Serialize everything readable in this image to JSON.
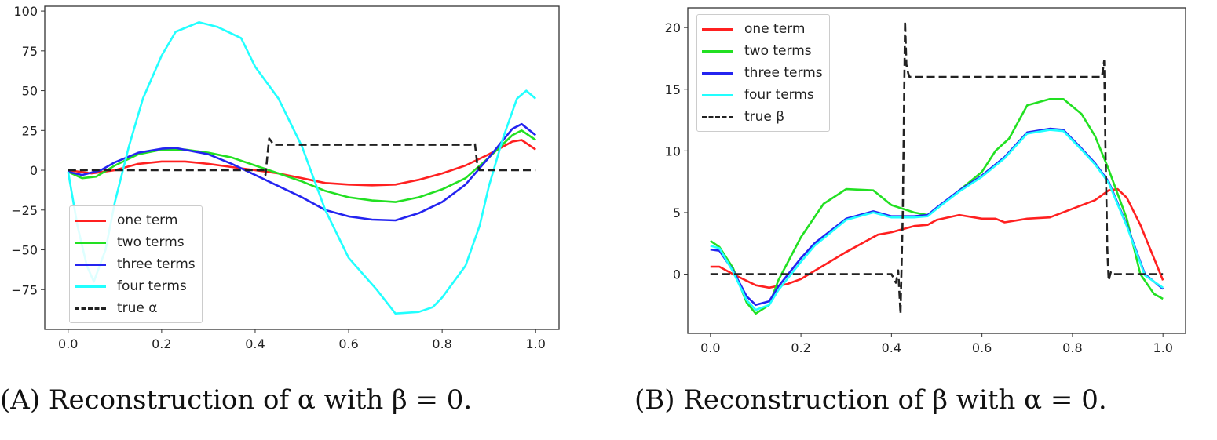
{
  "chart_data": [
    {
      "type": "line",
      "panel": "A",
      "caption_label": "(A)",
      "caption_text": "Reconstruction of α with β = 0.",
      "xlim": [
        -0.05,
        1.05
      ],
      "ylim": [
        -100,
        103
      ],
      "xticks": [
        0.0,
        0.2,
        0.4,
        0.6,
        0.8,
        1.0
      ],
      "xtick_labels": [
        "0.0",
        "0.2",
        "0.4",
        "0.6",
        "0.8",
        "1.0"
      ],
      "yticks": [
        100,
        75,
        50,
        25,
        0,
        -25,
        -50,
        -75
      ],
      "ytick_labels": [
        "100",
        "75",
        "50",
        "25",
        "0",
        "−25",
        "−50",
        "−75"
      ],
      "grid": false,
      "legend_placement": "lower-left",
      "series": [
        {
          "name": "one term",
          "color": "#ff2020",
          "dash": false,
          "x": [
            0,
            0.05,
            0.1,
            0.15,
            0.2,
            0.25,
            0.3,
            0.35,
            0.4,
            0.45,
            0.5,
            0.55,
            0.6,
            0.65,
            0.7,
            0.75,
            0.8,
            0.85,
            0.9,
            0.95,
            0.97,
            1.0
          ],
          "y": [
            0,
            -2,
            0,
            4,
            5.5,
            5.5,
            4,
            2,
            0,
            -2,
            -5,
            -8,
            -9,
            -9.5,
            -9,
            -6,
            -2,
            3,
            10,
            18,
            19,
            13
          ]
        },
        {
          "name": "two terms",
          "color": "#22e022",
          "dash": false,
          "x": [
            0,
            0.03,
            0.06,
            0.1,
            0.15,
            0.2,
            0.25,
            0.3,
            0.35,
            0.4,
            0.45,
            0.5,
            0.55,
            0.6,
            0.65,
            0.7,
            0.75,
            0.8,
            0.85,
            0.9,
            0.95,
            0.97,
            1.0
          ],
          "y": [
            -1,
            -5,
            -4,
            3,
            10,
            13,
            13,
            11,
            8,
            3,
            -2,
            -7,
            -13,
            -17,
            -19,
            -20,
            -17,
            -12,
            -5,
            8,
            22,
            25,
            19
          ]
        },
        {
          "name": "three terms",
          "color": "#2424f0",
          "dash": false,
          "x": [
            0,
            0.03,
            0.07,
            0.1,
            0.15,
            0.2,
            0.23,
            0.3,
            0.35,
            0.4,
            0.45,
            0.5,
            0.55,
            0.6,
            0.65,
            0.7,
            0.75,
            0.8,
            0.85,
            0.9,
            0.95,
            0.97,
            1.0
          ],
          "y": [
            -1,
            -3,
            0,
            5,
            11,
            13.5,
            14,
            10,
            4,
            -3,
            -10,
            -17,
            -25,
            -29,
            -31,
            -31.5,
            -27,
            -20,
            -9,
            8,
            26,
            29,
            22
          ]
        },
        {
          "name": "four terms",
          "color": "#22ffff",
          "dash": false,
          "x": [
            0,
            0.02,
            0.04,
            0.055,
            0.08,
            0.1,
            0.13,
            0.16,
            0.2,
            0.23,
            0.28,
            0.32,
            0.37,
            0.4,
            0.45,
            0.5,
            0.55,
            0.6,
            0.63,
            0.66,
            0.7,
            0.75,
            0.78,
            0.8,
            0.85,
            0.88,
            0.9,
            0.93,
            0.96,
            0.98,
            1.0
          ],
          "y": [
            -1,
            -35,
            -60,
            -70,
            -50,
            -20,
            15,
            45,
            72,
            87,
            93,
            90,
            83,
            65,
            45,
            15,
            -25,
            -55,
            -65,
            -75,
            -90,
            -89,
            -86,
            -80,
            -60,
            -35,
            -10,
            20,
            45,
            50,
            45
          ]
        },
        {
          "name": "true α",
          "color": "#222222",
          "dash": true,
          "x": [
            0,
            0.42,
            0.422,
            0.43,
            0.44,
            0.86,
            0.87,
            0.875,
            0.88,
            1.0
          ],
          "y": [
            0,
            0,
            -3,
            20,
            16,
            16,
            17,
            4,
            0,
            0
          ]
        }
      ]
    },
    {
      "type": "line",
      "panel": "B",
      "caption_label": "(B)",
      "caption_text": "Reconstruction of β with α = 0.",
      "xlim": [
        -0.05,
        1.05
      ],
      "ylim": [
        -4.8,
        21.6
      ],
      "xticks": [
        0.0,
        0.2,
        0.4,
        0.6,
        0.8,
        1.0
      ],
      "xtick_labels": [
        "0.0",
        "0.2",
        "0.4",
        "0.6",
        "0.8",
        "1.0"
      ],
      "yticks": [
        20,
        15,
        10,
        5,
        0
      ],
      "ytick_labels": [
        "20",
        "15",
        "10",
        "5",
        "0"
      ],
      "grid": false,
      "legend_placement": "upper-left",
      "series": [
        {
          "name": "one term",
          "color": "#ff2020",
          "dash": false,
          "x": [
            0,
            0.02,
            0.05,
            0.1,
            0.13,
            0.17,
            0.2,
            0.25,
            0.3,
            0.35,
            0.37,
            0.4,
            0.45,
            0.48,
            0.5,
            0.55,
            0.6,
            0.63,
            0.65,
            0.7,
            0.75,
            0.8,
            0.85,
            0.88,
            0.9,
            0.92,
            0.95,
            1.0
          ],
          "y": [
            0.6,
            0.6,
            0,
            -0.9,
            -1.1,
            -0.8,
            -0.4,
            0.7,
            1.8,
            2.8,
            3.2,
            3.4,
            3.9,
            4.0,
            4.4,
            4.8,
            4.5,
            4.5,
            4.2,
            4.5,
            4.6,
            5.3,
            6.0,
            6.8,
            6.9,
            6.2,
            4,
            -0.5
          ]
        },
        {
          "name": "two terms",
          "color": "#22e022",
          "dash": false,
          "x": [
            0,
            0.02,
            0.05,
            0.08,
            0.1,
            0.13,
            0.15,
            0.2,
            0.25,
            0.3,
            0.36,
            0.4,
            0.45,
            0.48,
            0.5,
            0.55,
            0.6,
            0.63,
            0.66,
            0.7,
            0.75,
            0.78,
            0.82,
            0.85,
            0.88,
            0.92,
            0.95,
            0.98,
            1.0
          ],
          "y": [
            2.7,
            2.2,
            0.5,
            -2.3,
            -3.2,
            -2.5,
            -0.5,
            3,
            5.7,
            6.9,
            6.8,
            5.6,
            5.0,
            4.8,
            5.3,
            6.8,
            8.3,
            10,
            11,
            13.7,
            14.2,
            14.2,
            13,
            11.2,
            8.5,
            4.5,
            0,
            -1.6,
            -2
          ]
        },
        {
          "name": "three terms",
          "color": "#2424f0",
          "dash": false,
          "x": [
            0,
            0.02,
            0.05,
            0.08,
            0.1,
            0.13,
            0.15,
            0.2,
            0.23,
            0.3,
            0.36,
            0.4,
            0.45,
            0.48,
            0.5,
            0.55,
            0.6,
            0.65,
            0.7,
            0.75,
            0.78,
            0.82,
            0.85,
            0.88,
            0.92,
            0.96,
            1.0
          ],
          "y": [
            2,
            1.9,
            0.3,
            -1.8,
            -2.5,
            -2.2,
            -1,
            1.3,
            2.5,
            4.5,
            5.1,
            4.7,
            4.7,
            4.8,
            5.4,
            6.8,
            8,
            9.5,
            11.5,
            11.8,
            11.7,
            10.2,
            9,
            7.5,
            4,
            0,
            -1.2
          ]
        },
        {
          "name": "four terms",
          "color": "#22ffff",
          "dash": false,
          "x": [
            0,
            0.02,
            0.05,
            0.08,
            0.1,
            0.13,
            0.15,
            0.2,
            0.23,
            0.3,
            0.36,
            0.4,
            0.45,
            0.48,
            0.5,
            0.55,
            0.6,
            0.65,
            0.7,
            0.75,
            0.78,
            0.82,
            0.85,
            0.88,
            0.92,
            0.96,
            1.0
          ],
          "y": [
            2.3,
            2.1,
            0.2,
            -2.1,
            -2.9,
            -2.5,
            -1.3,
            1.0,
            2.3,
            4.4,
            5.0,
            4.6,
            4.6,
            4.7,
            5.3,
            6.7,
            7.9,
            9.4,
            11.4,
            11.7,
            11.6,
            10.1,
            8.9,
            7.4,
            3.9,
            -0.1,
            -1.1
          ]
        },
        {
          "name": "true β",
          "color": "#222222",
          "dash": true,
          "x": [
            0,
            0.4,
            0.41,
            0.415,
            0.42,
            0.425,
            0.43,
            0.433,
            0.437,
            0.44,
            0.865,
            0.87,
            0.873,
            0.877,
            0.88,
            0.885,
            0.89,
            1.0
          ],
          "y": [
            0,
            0,
            -0.7,
            0.3,
            -3.2,
            5,
            20.5,
            17,
            16.3,
            16,
            16,
            17.3,
            10,
            2,
            -0.5,
            0.2,
            0,
            0
          ]
        }
      ]
    }
  ]
}
